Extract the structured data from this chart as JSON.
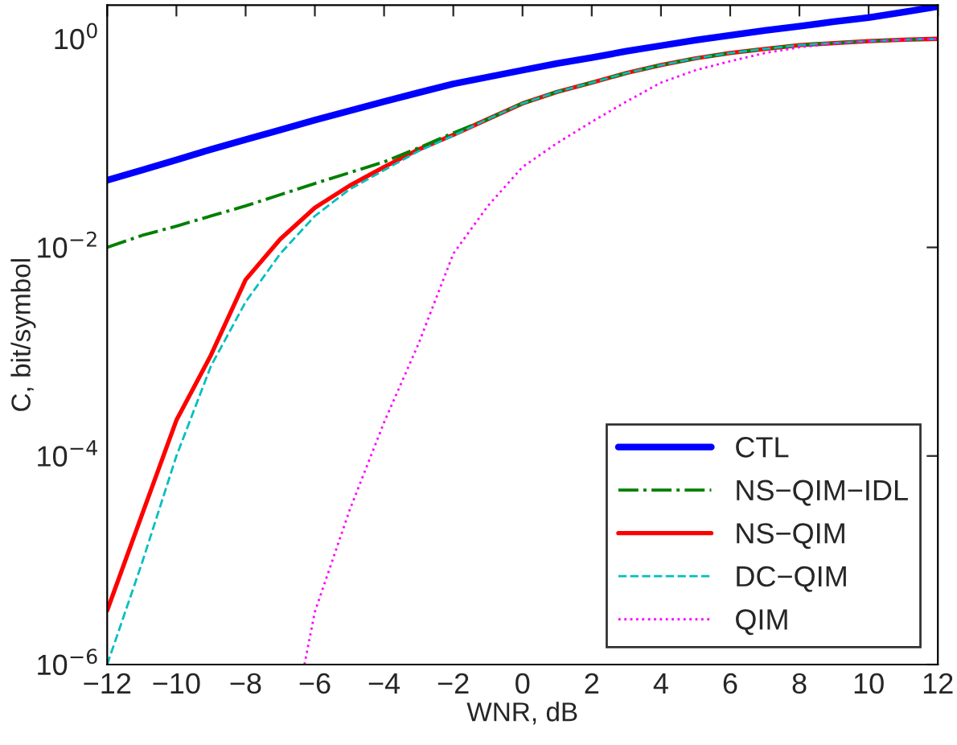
{
  "chart_data": {
    "type": "line",
    "xlabel": "WNR, dB",
    "ylabel": "C, bit/symbol",
    "log": "y",
    "xlim": [
      -12,
      12
    ],
    "xticks": [
      -12,
      -10,
      -8,
      -6,
      -4,
      -2,
      0,
      2,
      4,
      6,
      8,
      10,
      12
    ],
    "ylim": [
      1e-06,
      2.1
    ],
    "yticks": [
      {
        "value": 1e-06,
        "label": "10$^{−6}$"
      },
      {
        "value": 0.0001,
        "label": "10$^{−4}$"
      },
      {
        "value": 0.01,
        "label": "10$^{−2}$"
      },
      {
        "value": 1,
        "label": "10$^{0}$"
      }
    ],
    "grid": false,
    "legend": "bottom right",
    "x": [
      -12,
      -11,
      -10,
      -9,
      -8,
      -7,
      -6,
      -5,
      -4,
      -3,
      -2,
      -1,
      0,
      1,
      2,
      3,
      4,
      5,
      6,
      7,
      8,
      9,
      10,
      11,
      12
    ],
    "series": [
      {
        "name": "CTL",
        "color": "#0000ff",
        "line_style": "solid",
        "values": [
          0.044,
          0.055,
          0.069,
          0.087,
          0.108,
          0.134,
          0.166,
          0.204,
          0.25,
          0.305,
          0.37,
          0.43,
          0.5,
          0.58,
          0.66,
          0.76,
          0.86,
          0.97,
          1.08,
          1.2,
          1.32,
          1.46,
          1.6,
          1.8,
          2.04
        ]
      },
      {
        "name": "NS−QIM−IDL",
        "color": "#007f00",
        "line_style": "dashdot",
        "values": [
          0.01,
          0.013,
          0.016,
          0.02,
          0.025,
          0.032,
          0.041,
          0.052,
          0.066,
          0.09,
          0.125,
          0.17,
          0.24,
          0.31,
          0.38,
          0.47,
          0.56,
          0.65,
          0.73,
          0.8,
          0.87,
          0.91,
          0.95,
          0.98,
          1.0
        ]
      },
      {
        "name": "NS−QIM",
        "color": "#ff0000",
        "line_style": "solid",
        "values": [
          3.3e-06,
          2.7e-05,
          0.00022,
          0.00093,
          0.0049,
          0.012,
          0.024,
          0.039,
          0.059,
          0.087,
          0.12,
          0.17,
          0.24,
          0.31,
          0.38,
          0.47,
          0.56,
          0.65,
          0.73,
          0.8,
          0.87,
          0.91,
          0.95,
          0.98,
          1.0
        ]
      },
      {
        "name": "DC−QIM",
        "color": "#00bfbf",
        "line_style": "dashed",
        "values": [
          1e-06,
          9.3e-06,
          0.0001,
          0.00073,
          0.003,
          0.0087,
          0.02,
          0.036,
          0.055,
          0.084,
          0.118,
          0.17,
          0.24,
          0.31,
          0.38,
          0.47,
          0.56,
          0.65,
          0.73,
          0.8,
          0.87,
          0.91,
          0.95,
          0.98,
          1.0
        ]
      },
      {
        "name": "QIM",
        "color": "#ff00ff",
        "line_style": "dotted",
        "x": [
          -6.3,
          -6,
          -5,
          -4,
          -3,
          -2,
          -1,
          0,
          1,
          2,
          3,
          4,
          5,
          6,
          7,
          8,
          9,
          10,
          11,
          12
        ],
        "values": [
          1e-06,
          3.2e-06,
          3e-05,
          0.00021,
          0.0012,
          0.0087,
          0.025,
          0.059,
          0.1,
          0.16,
          0.25,
          0.38,
          0.5,
          0.61,
          0.73,
          0.83,
          0.9,
          0.95,
          0.98,
          1.0
        ]
      }
    ]
  }
}
